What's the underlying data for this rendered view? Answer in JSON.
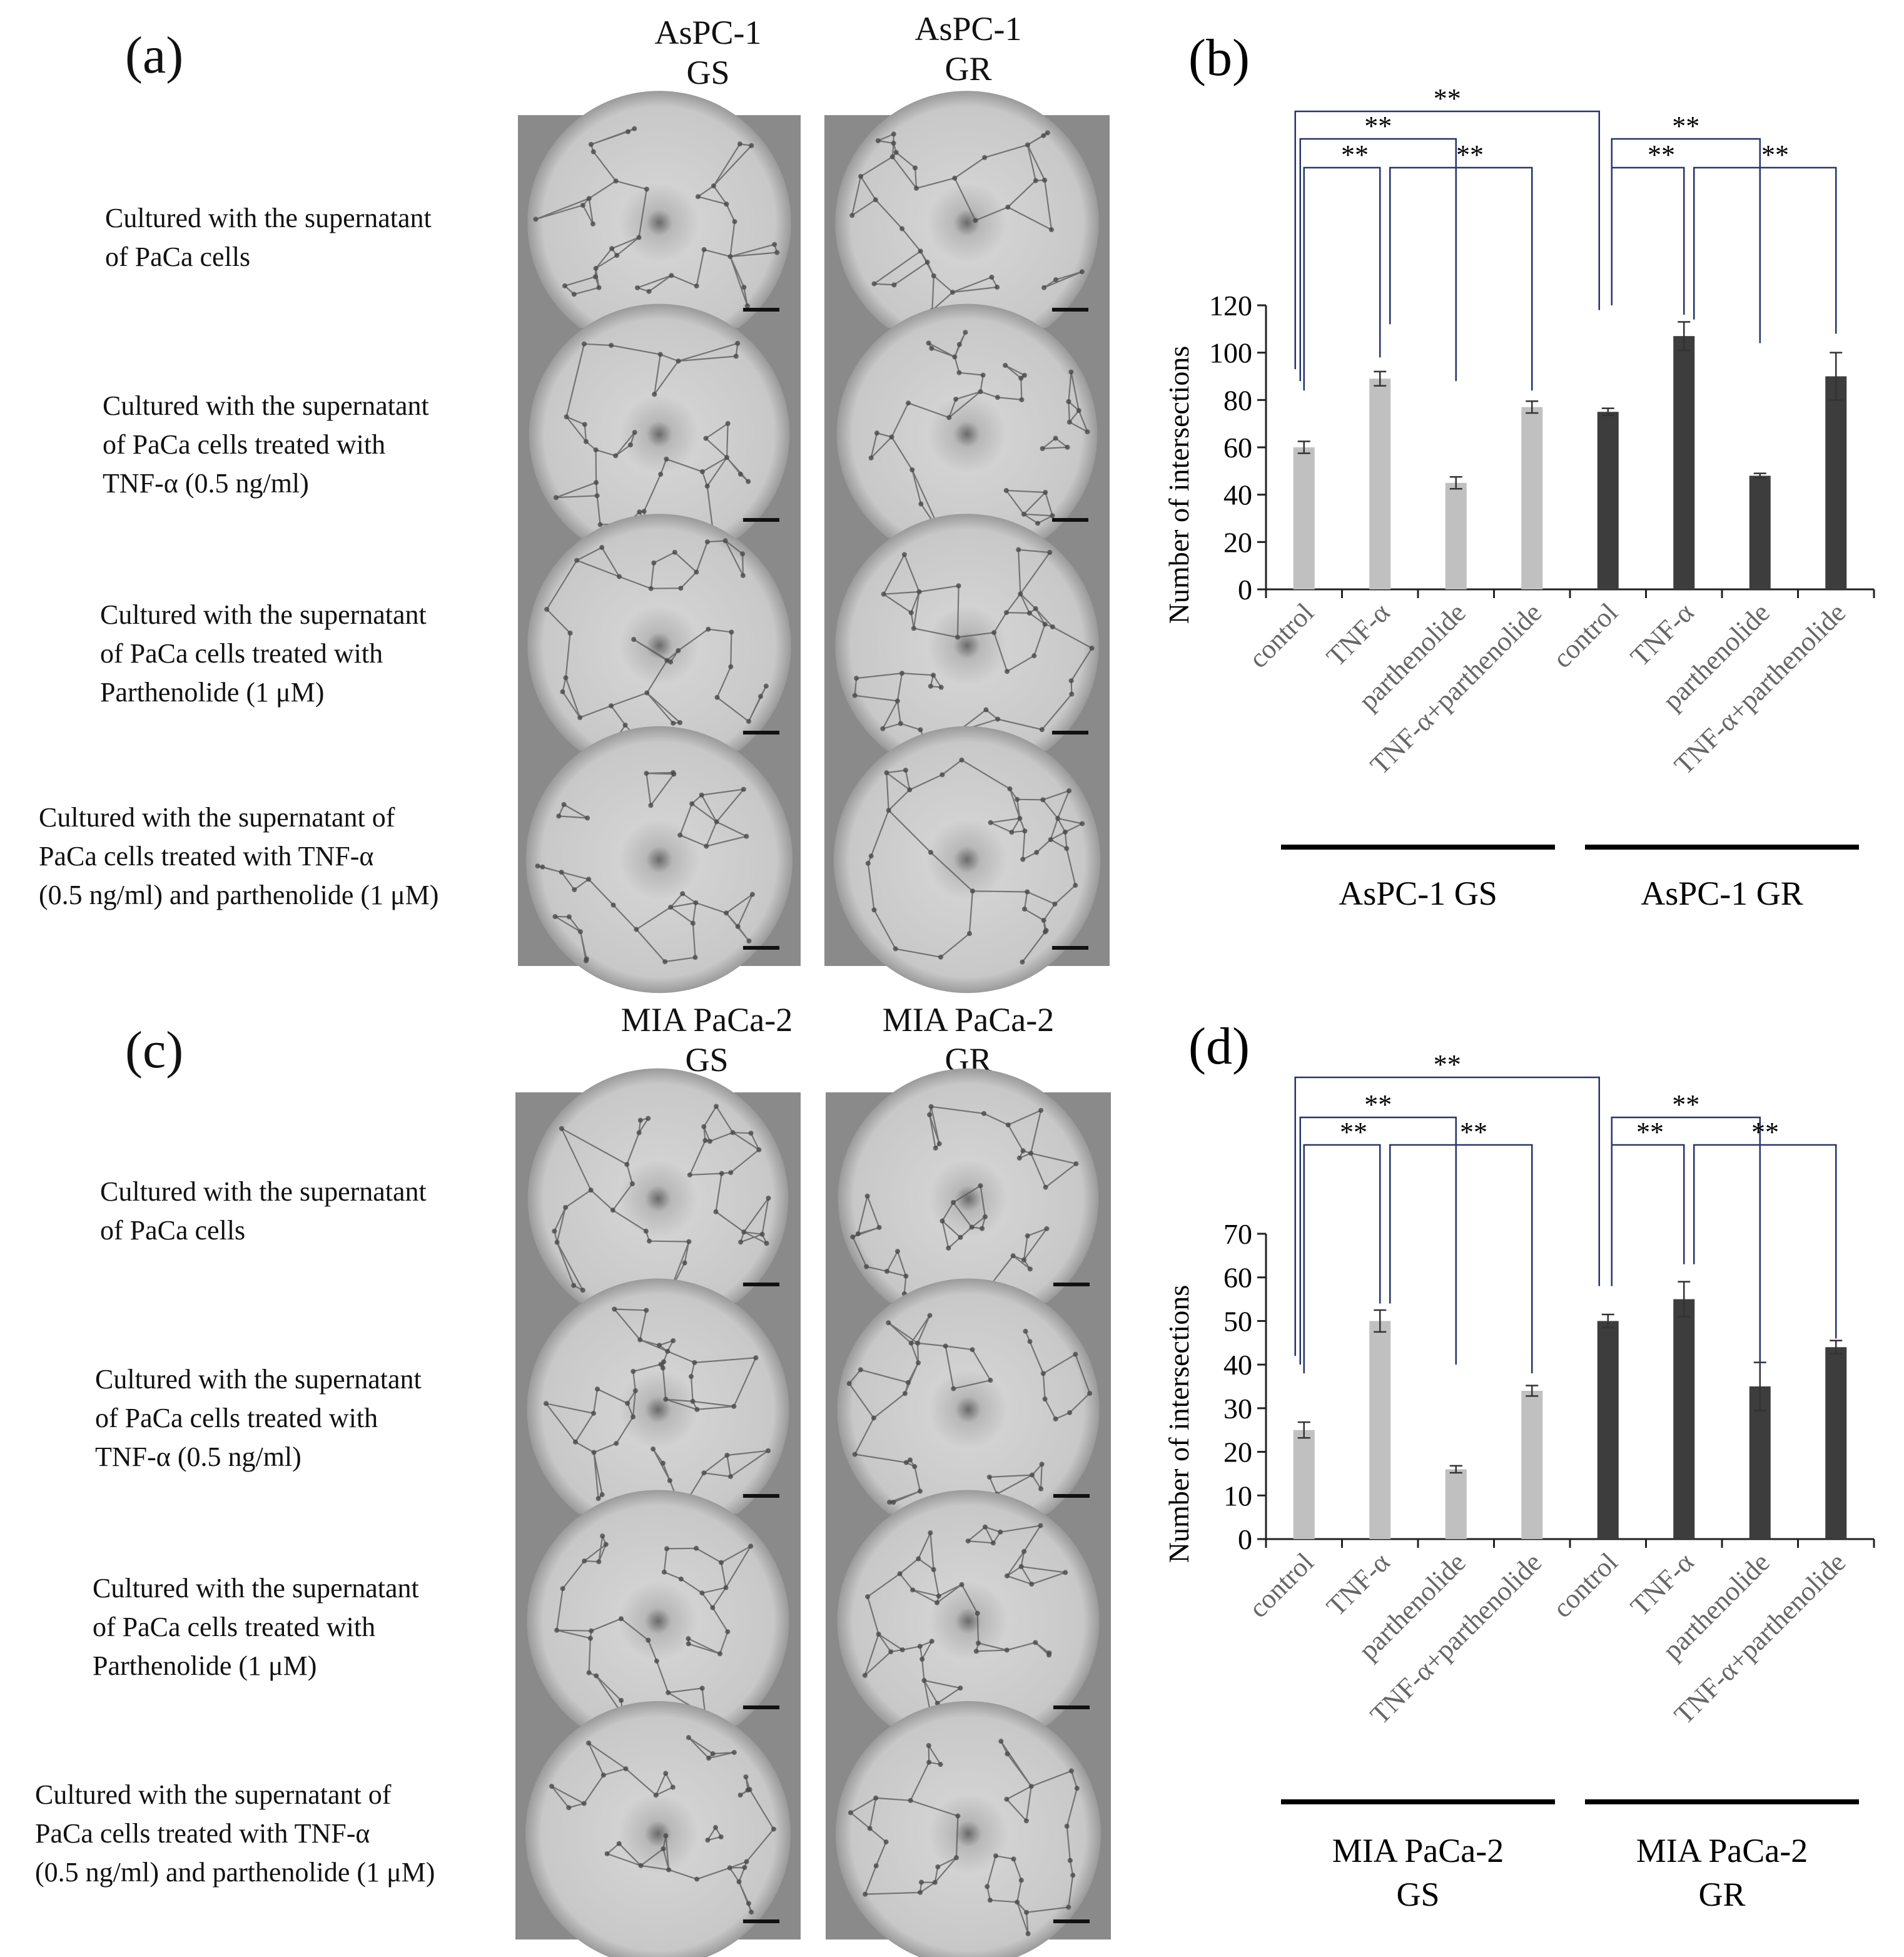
{
  "panel_a": {
    "letter": "(a)",
    "columns": [
      {
        "line1": "AsPC-1",
        "line2": "GS"
      },
      {
        "line1": "AsPC-1",
        "line2": "GR"
      }
    ],
    "rows": [
      {
        "line1": "Cultured with the supernatant",
        "line2": "of PaCa cells",
        "line3": ""
      },
      {
        "line1": "Cultured with the supernatant",
        "line2": "of PaCa cells treated with",
        "line3": "TNF-α (0.5 ng/ml)"
      },
      {
        "line1": "Cultured with the supernatant",
        "line2": "of PaCa cells treated with",
        "line3": "Parthenolide (1 μM)"
      },
      {
        "line1": "Cultured with the supernatant of",
        "line2": "PaCa cells treated with TNF-α",
        "line3": "(0.5 ng/ml) and parthenolide (1 μM)"
      }
    ]
  },
  "panel_c": {
    "letter": "(c)",
    "columns": [
      {
        "line1": "MIA PaCa-2",
        "line2": "GS"
      },
      {
        "line1": "MIA PaCa-2",
        "line2": "GR"
      }
    ],
    "rows": [
      {
        "line1": "Cultured with the supernatant",
        "line2": "of PaCa cells",
        "line3": ""
      },
      {
        "line1": "Cultured with the supernatant",
        "line2": "of PaCa cells treated with",
        "line3": "TNF-α (0.5 ng/ml)"
      },
      {
        "line1": "Cultured with the supernatant",
        "line2": "of PaCa cells treated with",
        "line3": "Parthenolide (1 μM)"
      },
      {
        "line1": "Cultured with the supernatant of",
        "line2": "PaCa cells treated with TNF-α",
        "line3": "(0.5 ng/ml) and parthenolide (1 μM)"
      }
    ]
  },
  "colors": {
    "gs_bar": "#c0c0c0",
    "gr_bar": "#3d3d3d",
    "bracket": "#26356b",
    "axis": "#222222",
    "micrograph_bg": "#8a8a8a",
    "micrograph_well": "#d2d2d2",
    "scale_bar": "#111111"
  },
  "significance_mark": "**",
  "chart_data": [
    {
      "letter": "(b)",
      "type": "bar",
      "ylabel": "Number of intersections",
      "ylim": [
        0,
        120
      ],
      "yticks": [
        0,
        20,
        40,
        60,
        80,
        100,
        120
      ],
      "categories": [
        "control",
        "TNF-α",
        "parthenolide",
        "TNF-α+parthenolide",
        "control",
        "TNF-α",
        "parthenolide",
        "TNF-α+parthenolide"
      ],
      "values": [
        60,
        89,
        45,
        77,
        75,
        107,
        48,
        90
      ],
      "errors": [
        2.5,
        3,
        2.5,
        2.5,
        1.5,
        6,
        1,
        10
      ],
      "groups": [
        {
          "label_line1": "AsPC-1 GS",
          "label_line2": "",
          "color": "#c0c0c0",
          "indices": [
            0,
            1,
            2,
            3
          ]
        },
        {
          "label_line1": "AsPC-1 GR",
          "label_line2": "",
          "color": "#3d3d3d",
          "indices": [
            4,
            5,
            6,
            7
          ]
        }
      ]
    },
    {
      "letter": "(d)",
      "type": "bar",
      "ylabel": "Number of intersections",
      "ylim": [
        0,
        70
      ],
      "yticks": [
        0,
        10,
        20,
        30,
        40,
        50,
        60,
        70
      ],
      "categories": [
        "control",
        "TNF-α",
        "parthenolide",
        "TNF-α+parthenolide",
        "control",
        "TNF-α",
        "parthenolide",
        "TNF-α+parthenolide"
      ],
      "values": [
        25,
        50,
        16,
        34,
        50,
        55,
        35,
        44
      ],
      "errors": [
        1.8,
        2.5,
        0.8,
        1.2,
        1.5,
        4,
        5.5,
        1.5
      ],
      "groups": [
        {
          "label_line1": "MIA PaCa-2",
          "label_line2": "GS",
          "color": "#c0c0c0",
          "indices": [
            0,
            1,
            2,
            3
          ]
        },
        {
          "label_line1": "MIA PaCa-2",
          "label_line2": "GR",
          "color": "#3d3d3d",
          "indices": [
            4,
            5,
            6,
            7
          ]
        }
      ]
    }
  ]
}
